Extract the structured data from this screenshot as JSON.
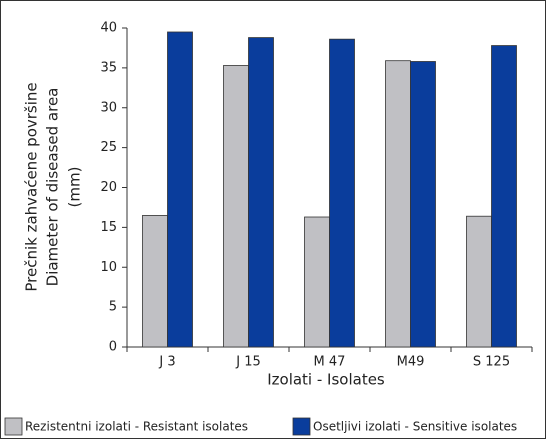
{
  "chart_data": {
    "type": "bar",
    "y_label_lines": [
      "Prečnik zahvaćene površine",
      "Diameter of diseased area",
      "(mm)"
    ],
    "x_label": "Izolati - Isolates",
    "categories": [
      "J 3",
      "J 15",
      "M 47",
      "M49",
      "S 125"
    ],
    "series": [
      {
        "name": "Rezistentni izolati - Resistant isolates",
        "color": "#c0c0c4",
        "values": [
          16.5,
          35.3,
          16.3,
          35.9,
          16.4
        ]
      },
      {
        "name": "Osetljivi izolati - Sensitive isolates",
        "color": "#0a3d9c",
        "values": [
          39.5,
          38.8,
          38.6,
          35.8,
          37.8
        ]
      }
    ],
    "ylim": [
      0,
      40
    ],
    "yticks": [
      0,
      5,
      10,
      15,
      20,
      25,
      30,
      35,
      40
    ],
    "grid": false
  }
}
